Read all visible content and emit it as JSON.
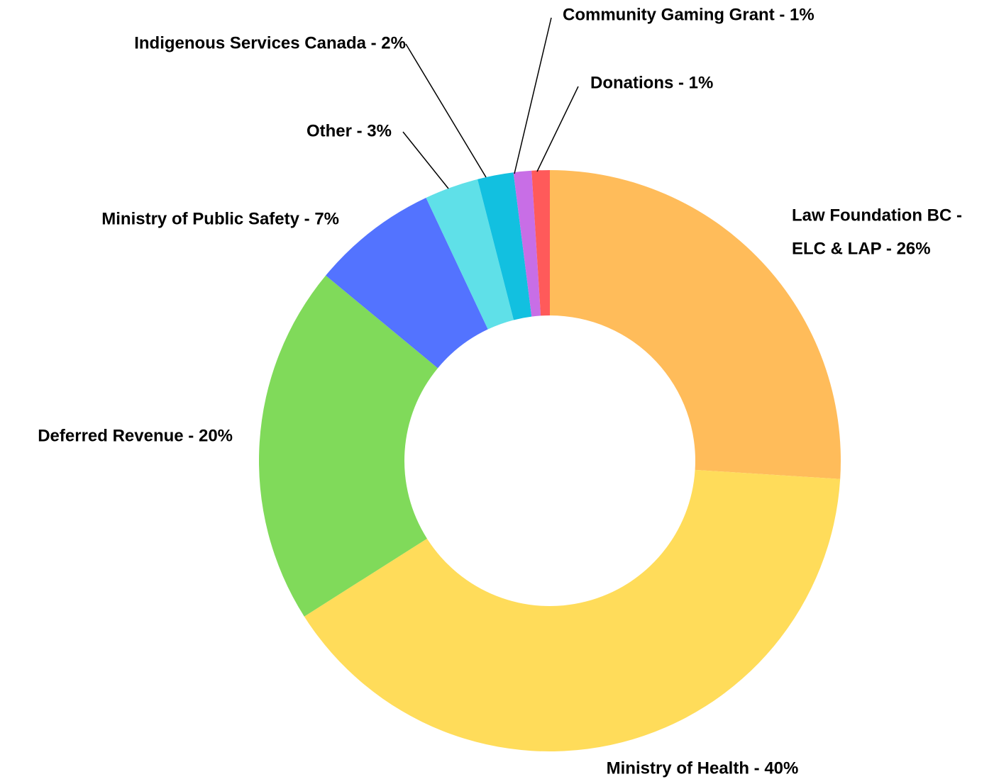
{
  "chart_data": {
    "type": "donut",
    "categories": [
      [
        "Law Foundation BC -",
        "ELC & LAP -  26%"
      ],
      "Ministry of Health - 40%",
      "Deferred Revenue - 20%",
      "Ministry of Public Safety - 7%",
      "Other - 3%",
      "Indigenous Services Canada - 2%",
      "Community Gaming Grant - 1%",
      "Donations - 1%"
    ],
    "values": [
      26,
      40,
      20,
      7,
      3,
      2,
      1,
      1
    ],
    "colors": [
      "#FFBC5A",
      "#FFDC5A",
      "#80DA5A",
      "#5373FF",
      "#5FE0E8",
      "#12C0E0",
      "#C86EE6",
      "#FF5A5A"
    ]
  }
}
